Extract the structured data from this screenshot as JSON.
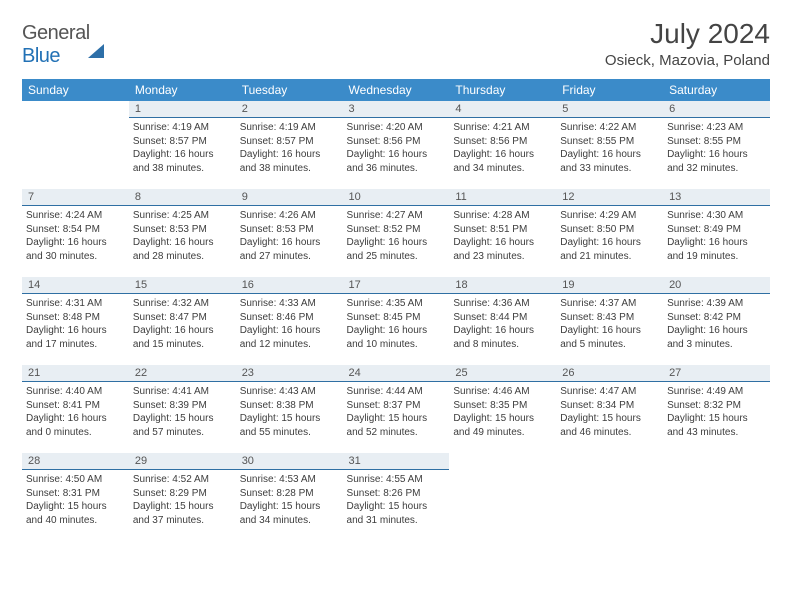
{
  "brand": {
    "name_part1": "General",
    "name_part2": "Blue"
  },
  "title": "July 2024",
  "location": "Osieck, Mazovia, Poland",
  "header_bg": "#3b8bc9",
  "daynum_bg": "#e8eef3",
  "daynum_border": "#2f6fa3",
  "weekdays": [
    "Sunday",
    "Monday",
    "Tuesday",
    "Wednesday",
    "Thursday",
    "Friday",
    "Saturday"
  ],
  "first_weekday_index": 1,
  "days": [
    {
      "n": 1,
      "sunrise": "4:19 AM",
      "sunset": "8:57 PM",
      "daylight": "16 hours and 38 minutes."
    },
    {
      "n": 2,
      "sunrise": "4:19 AM",
      "sunset": "8:57 PM",
      "daylight": "16 hours and 38 minutes."
    },
    {
      "n": 3,
      "sunrise": "4:20 AM",
      "sunset": "8:56 PM",
      "daylight": "16 hours and 36 minutes."
    },
    {
      "n": 4,
      "sunrise": "4:21 AM",
      "sunset": "8:56 PM",
      "daylight": "16 hours and 34 minutes."
    },
    {
      "n": 5,
      "sunrise": "4:22 AM",
      "sunset": "8:55 PM",
      "daylight": "16 hours and 33 minutes."
    },
    {
      "n": 6,
      "sunrise": "4:23 AM",
      "sunset": "8:55 PM",
      "daylight": "16 hours and 32 minutes."
    },
    {
      "n": 7,
      "sunrise": "4:24 AM",
      "sunset": "8:54 PM",
      "daylight": "16 hours and 30 minutes."
    },
    {
      "n": 8,
      "sunrise": "4:25 AM",
      "sunset": "8:53 PM",
      "daylight": "16 hours and 28 minutes."
    },
    {
      "n": 9,
      "sunrise": "4:26 AM",
      "sunset": "8:53 PM",
      "daylight": "16 hours and 27 minutes."
    },
    {
      "n": 10,
      "sunrise": "4:27 AM",
      "sunset": "8:52 PM",
      "daylight": "16 hours and 25 minutes."
    },
    {
      "n": 11,
      "sunrise": "4:28 AM",
      "sunset": "8:51 PM",
      "daylight": "16 hours and 23 minutes."
    },
    {
      "n": 12,
      "sunrise": "4:29 AM",
      "sunset": "8:50 PM",
      "daylight": "16 hours and 21 minutes."
    },
    {
      "n": 13,
      "sunrise": "4:30 AM",
      "sunset": "8:49 PM",
      "daylight": "16 hours and 19 minutes."
    },
    {
      "n": 14,
      "sunrise": "4:31 AM",
      "sunset": "8:48 PM",
      "daylight": "16 hours and 17 minutes."
    },
    {
      "n": 15,
      "sunrise": "4:32 AM",
      "sunset": "8:47 PM",
      "daylight": "16 hours and 15 minutes."
    },
    {
      "n": 16,
      "sunrise": "4:33 AM",
      "sunset": "8:46 PM",
      "daylight": "16 hours and 12 minutes."
    },
    {
      "n": 17,
      "sunrise": "4:35 AM",
      "sunset": "8:45 PM",
      "daylight": "16 hours and 10 minutes."
    },
    {
      "n": 18,
      "sunrise": "4:36 AM",
      "sunset": "8:44 PM",
      "daylight": "16 hours and 8 minutes."
    },
    {
      "n": 19,
      "sunrise": "4:37 AM",
      "sunset": "8:43 PM",
      "daylight": "16 hours and 5 minutes."
    },
    {
      "n": 20,
      "sunrise": "4:39 AM",
      "sunset": "8:42 PM",
      "daylight": "16 hours and 3 minutes."
    },
    {
      "n": 21,
      "sunrise": "4:40 AM",
      "sunset": "8:41 PM",
      "daylight": "16 hours and 0 minutes."
    },
    {
      "n": 22,
      "sunrise": "4:41 AM",
      "sunset": "8:39 PM",
      "daylight": "15 hours and 57 minutes."
    },
    {
      "n": 23,
      "sunrise": "4:43 AM",
      "sunset": "8:38 PM",
      "daylight": "15 hours and 55 minutes."
    },
    {
      "n": 24,
      "sunrise": "4:44 AM",
      "sunset": "8:37 PM",
      "daylight": "15 hours and 52 minutes."
    },
    {
      "n": 25,
      "sunrise": "4:46 AM",
      "sunset": "8:35 PM",
      "daylight": "15 hours and 49 minutes."
    },
    {
      "n": 26,
      "sunrise": "4:47 AM",
      "sunset": "8:34 PM",
      "daylight": "15 hours and 46 minutes."
    },
    {
      "n": 27,
      "sunrise": "4:49 AM",
      "sunset": "8:32 PM",
      "daylight": "15 hours and 43 minutes."
    },
    {
      "n": 28,
      "sunrise": "4:50 AM",
      "sunset": "8:31 PM",
      "daylight": "15 hours and 40 minutes."
    },
    {
      "n": 29,
      "sunrise": "4:52 AM",
      "sunset": "8:29 PM",
      "daylight": "15 hours and 37 minutes."
    },
    {
      "n": 30,
      "sunrise": "4:53 AM",
      "sunset": "8:28 PM",
      "daylight": "15 hours and 34 minutes."
    },
    {
      "n": 31,
      "sunrise": "4:55 AM",
      "sunset": "8:26 PM",
      "daylight": "15 hours and 31 minutes."
    }
  ],
  "labels": {
    "sunrise": "Sunrise:",
    "sunset": "Sunset:",
    "daylight": "Daylight:"
  }
}
